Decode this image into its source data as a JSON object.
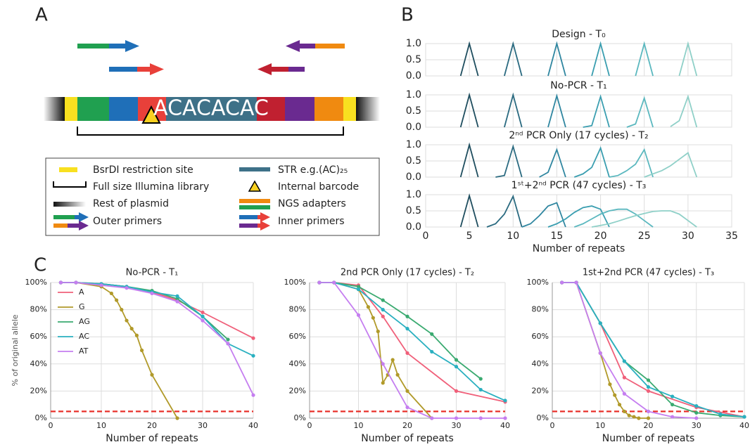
{
  "panel_labels": [
    "A",
    "B",
    "C"
  ],
  "diagram": {
    "insert_text": "ACACACAC",
    "legend": [
      "BsrDI restriction site",
      "Full size Illumina library",
      "Rest of plasmid",
      "Outer primers",
      "STR e.g.(AC)₂₅",
      "Internal barcode",
      "NGS adapters",
      "Inner primers"
    ]
  },
  "chart_data": [
    {
      "type": "line",
      "xlabel": "Number of repeats",
      "xlim": [
        0,
        35
      ],
      "xticks": [
        0,
        5,
        10,
        15,
        20,
        25,
        30,
        35
      ],
      "ylim": [
        0,
        1
      ],
      "yticks": [
        {
          "value": 0,
          "label": "0.0"
        },
        {
          "value": 0.5,
          "label": "0.5"
        },
        {
          "value": 1,
          "label": "1.0"
        }
      ],
      "grid": true,
      "subplots": [
        {
          "title": "Design - T₀",
          "series": [
            {
              "color": "#1f4e5f",
              "x": [
                4,
                5,
                6
              ],
              "values": [
                0,
                1,
                0
              ]
            },
            {
              "color": "#2a6a80",
              "x": [
                9,
                10,
                11
              ],
              "values": [
                0,
                1,
                0
              ]
            },
            {
              "color": "#2f86a0",
              "x": [
                14,
                15,
                16
              ],
              "values": [
                0,
                1,
                0
              ]
            },
            {
              "color": "#3a9eb0",
              "x": [
                19,
                20,
                21
              ],
              "values": [
                0,
                1,
                0
              ]
            },
            {
              "color": "#5bb8bf",
              "x": [
                24,
                25,
                26
              ],
              "values": [
                0,
                1,
                0
              ]
            },
            {
              "color": "#8fd0c8",
              "x": [
                29,
                30,
                31
              ],
              "values": [
                0,
                1,
                0
              ]
            }
          ]
        },
        {
          "title": "No-PCR - T₁",
          "series": [
            {
              "color": "#1f4e5f",
              "x": [
                4,
                5,
                6
              ],
              "values": [
                0,
                1,
                0
              ]
            },
            {
              "color": "#2a6a80",
              "x": [
                9,
                10,
                11
              ],
              "values": [
                0,
                1,
                0
              ]
            },
            {
              "color": "#2f86a0",
              "x": [
                14,
                15,
                16
              ],
              "values": [
                0,
                0.97,
                0
              ]
            },
            {
              "color": "#3a9eb0",
              "x": [
                18,
                19,
                20,
                21
              ],
              "values": [
                0,
                0.05,
                0.95,
                0
              ]
            },
            {
              "color": "#5bb8bf",
              "x": [
                23,
                24,
                25,
                26
              ],
              "values": [
                0,
                0.1,
                0.9,
                0
              ]
            },
            {
              "color": "#8fd0c8",
              "x": [
                28,
                29,
                30,
                31
              ],
              "values": [
                0.02,
                0.2,
                0.95,
                0
              ]
            }
          ]
        },
        {
          "title": "2ⁿᵈ PCR Only (17 cycles) - T₂",
          "series": [
            {
              "color": "#1f4e5f",
              "x": [
                4,
                5,
                6
              ],
              "values": [
                0,
                1,
                0
              ]
            },
            {
              "color": "#2a6a80",
              "x": [
                8,
                9,
                10,
                11
              ],
              "values": [
                0,
                0.05,
                0.95,
                0
              ]
            },
            {
              "color": "#2f86a0",
              "x": [
                13,
                14,
                15,
                16
              ],
              "values": [
                0,
                0.15,
                0.85,
                0
              ]
            },
            {
              "color": "#3a9eb0",
              "x": [
                17,
                18,
                19,
                20,
                21
              ],
              "values": [
                0,
                0.1,
                0.3,
                0.9,
                0
              ]
            },
            {
              "color": "#5bb8bf",
              "x": [
                21,
                22,
                23,
                24,
                25,
                26
              ],
              "values": [
                0,
                0.05,
                0.2,
                0.4,
                0.85,
                0
              ]
            },
            {
              "color": "#8fd0c8",
              "x": [
                25,
                26,
                27,
                28,
                29,
                30,
                31
              ],
              "values": [
                0,
                0.1,
                0.2,
                0.35,
                0.55,
                0.75,
                0
              ]
            }
          ]
        },
        {
          "title": "1ˢᵗ+2ⁿᵈ PCR (47 cycles) - T₃",
          "series": [
            {
              "color": "#1f4e5f",
              "x": [
                4,
                5,
                6
              ],
              "values": [
                0,
                0.97,
                0
              ]
            },
            {
              "color": "#2a6a80",
              "x": [
                7,
                8,
                9,
                10,
                11
              ],
              "values": [
                0,
                0.1,
                0.4,
                0.95,
                0
              ]
            },
            {
              "color": "#2f86a0",
              "x": [
                11,
                12,
                13,
                14,
                15,
                16
              ],
              "values": [
                0,
                0.1,
                0.35,
                0.65,
                0.75,
                0
              ]
            },
            {
              "color": "#3a9eb0",
              "x": [
                14,
                15,
                16,
                17,
                18,
                19,
                20,
                21
              ],
              "values": [
                0,
                0.1,
                0.25,
                0.45,
                0.6,
                0.65,
                0.55,
                0
              ]
            },
            {
              "color": "#5bb8bf",
              "x": [
                17,
                18,
                19,
                20,
                21,
                22,
                23,
                24,
                25,
                26
              ],
              "values": [
                0,
                0.1,
                0.25,
                0.4,
                0.5,
                0.55,
                0.55,
                0.4,
                0.2,
                0
              ]
            },
            {
              "color": "#8fd0c8",
              "x": [
                19,
                20,
                21,
                22,
                23,
                24,
                25,
                26,
                27,
                28,
                29,
                30,
                31
              ],
              "values": [
                0,
                0.05,
                0.1,
                0.18,
                0.27,
                0.35,
                0.42,
                0.48,
                0.5,
                0.5,
                0.4,
                0.2,
                0
              ]
            }
          ]
        }
      ]
    },
    {
      "type": "line",
      "title": "No-PCR - T₁",
      "ylabel": "% of original allele",
      "xlabel": "Number of repeats",
      "xlim": [
        0,
        40
      ],
      "xticks": [
        0,
        10,
        20,
        30,
        40
      ],
      "ylim": [
        0,
        100
      ],
      "yticks": [
        {
          "value": 0,
          "label": "0%"
        },
        {
          "value": 20,
          "label": "20%"
        },
        {
          "value": 40,
          "label": "40%"
        },
        {
          "value": 60,
          "label": "60%"
        },
        {
          "value": 80,
          "label": "80%"
        },
        {
          "value": 100,
          "label": "100%"
        }
      ],
      "grid": true,
      "legend": "upper left",
      "hline": 5,
      "hline_color": "#e8302a",
      "series": [
        {
          "name": "A",
          "color": "#f0607a",
          "x": [
            2,
            5,
            10,
            15,
            20,
            25,
            30,
            40
          ],
          "values": [
            100,
            100,
            99,
            97,
            93,
            87,
            78,
            59
          ]
        },
        {
          "name": "G",
          "color": "#b19a2a",
          "x": [
            2,
            5,
            10,
            12,
            13,
            14,
            15,
            16,
            17,
            18,
            20,
            25
          ],
          "values": [
            100,
            100,
            97,
            92,
            87,
            80,
            72,
            66,
            61,
            50,
            32,
            0
          ]
        },
        {
          "name": "AG",
          "color": "#3aaa70",
          "x": [
            2,
            5,
            10,
            15,
            20,
            25,
            30,
            35
          ],
          "values": [
            100,
            100,
            99,
            97,
            94,
            88,
            75,
            58
          ]
        },
        {
          "name": "AC",
          "color": "#2ab0c0",
          "x": [
            2,
            5,
            10,
            15,
            20,
            25,
            30,
            35,
            40
          ],
          "values": [
            100,
            100,
            99,
            97,
            93,
            90,
            75,
            55,
            46
          ]
        },
        {
          "name": "AT",
          "color": "#c57ef0",
          "x": [
            2,
            5,
            10,
            15,
            20,
            25,
            30,
            35,
            40
          ],
          "values": [
            100,
            100,
            98,
            96,
            92,
            86,
            72,
            55,
            17
          ]
        }
      ]
    },
    {
      "type": "line",
      "title": "2nd PCR Only (17 cycles) - T₂",
      "xlabel": "Number of repeats",
      "xlim": [
        0,
        40
      ],
      "xticks": [
        0,
        10,
        20,
        30,
        40
      ],
      "ylim": [
        0,
        100
      ],
      "yticks": [
        {
          "value": 0,
          "label": "0%"
        },
        {
          "value": 20,
          "label": "20%"
        },
        {
          "value": 40,
          "label": "40%"
        },
        {
          "value": 60,
          "label": "60%"
        },
        {
          "value": 80,
          "label": "80%"
        },
        {
          "value": 100,
          "label": "100%"
        }
      ],
      "grid": true,
      "hline": 5,
      "hline_color": "#e8302a",
      "series": [
        {
          "color": "#f0607a",
          "x": [
            2,
            5,
            10,
            15,
            20,
            30,
            40
          ],
          "values": [
            100,
            100,
            98,
            75,
            48,
            20,
            12
          ]
        },
        {
          "color": "#b19a2a",
          "x": [
            2,
            5,
            10,
            12,
            13,
            14,
            15,
            16,
            17,
            18,
            20,
            25
          ],
          "values": [
            100,
            100,
            95,
            82,
            74,
            64,
            26,
            32,
            43,
            32,
            20,
            0
          ]
        },
        {
          "color": "#3aaa70",
          "x": [
            2,
            5,
            10,
            15,
            20,
            25,
            30,
            35
          ],
          "values": [
            100,
            100,
            97,
            87,
            75,
            62,
            43,
            29
          ]
        },
        {
          "color": "#2ab0c0",
          "x": [
            2,
            5,
            10,
            15,
            20,
            25,
            30,
            35,
            40
          ],
          "values": [
            100,
            100,
            95,
            80,
            66,
            49,
            38,
            21,
            13
          ]
        },
        {
          "color": "#c57ef0",
          "x": [
            2,
            5,
            10,
            15,
            20,
            25,
            30,
            35,
            40
          ],
          "values": [
            100,
            100,
            76,
            40,
            8,
            0,
            0,
            0,
            0
          ]
        }
      ]
    },
    {
      "type": "line",
      "title": "1st+2nd PCR (47 cycles) - T₃",
      "xlabel": "Number of repeats",
      "xlim": [
        0,
        40
      ],
      "xticks": [
        0,
        10,
        20,
        30,
        40
      ],
      "ylim": [
        0,
        100
      ],
      "yticks": [
        {
          "value": 0,
          "label": "0%"
        },
        {
          "value": 20,
          "label": "20%"
        },
        {
          "value": 40,
          "label": "40%"
        },
        {
          "value": 60,
          "label": "60%"
        },
        {
          "value": 80,
          "label": "80%"
        },
        {
          "value": 100,
          "label": "100%"
        }
      ],
      "grid": true,
      "hline": 5,
      "hline_color": "#e8302a",
      "series": [
        {
          "color": "#f0607a",
          "x": [
            2,
            5,
            10,
            15,
            20,
            30,
            40
          ],
          "values": [
            100,
            100,
            70,
            30,
            20,
            8,
            1
          ]
        },
        {
          "color": "#b19a2a",
          "x": [
            2,
            5,
            10,
            12,
            13,
            14,
            15,
            16,
            17,
            18,
            20
          ],
          "values": [
            100,
            100,
            48,
            25,
            17,
            10,
            5,
            2,
            1,
            0,
            0
          ]
        },
        {
          "color": "#3aaa70",
          "x": [
            2,
            5,
            10,
            15,
            20,
            25,
            30,
            35,
            40
          ],
          "values": [
            100,
            100,
            70,
            42,
            28,
            10,
            4,
            2,
            1
          ]
        },
        {
          "color": "#2ab0c0",
          "x": [
            2,
            5,
            10,
            15,
            20,
            25,
            30,
            35,
            40
          ],
          "values": [
            100,
            100,
            70,
            42,
            23,
            16,
            9,
            3,
            1
          ]
        },
        {
          "color": "#c57ef0",
          "x": [
            2,
            5,
            10,
            15,
            20,
            25,
            30
          ],
          "values": [
            100,
            100,
            48,
            18,
            5,
            1,
            0
          ]
        }
      ]
    }
  ]
}
